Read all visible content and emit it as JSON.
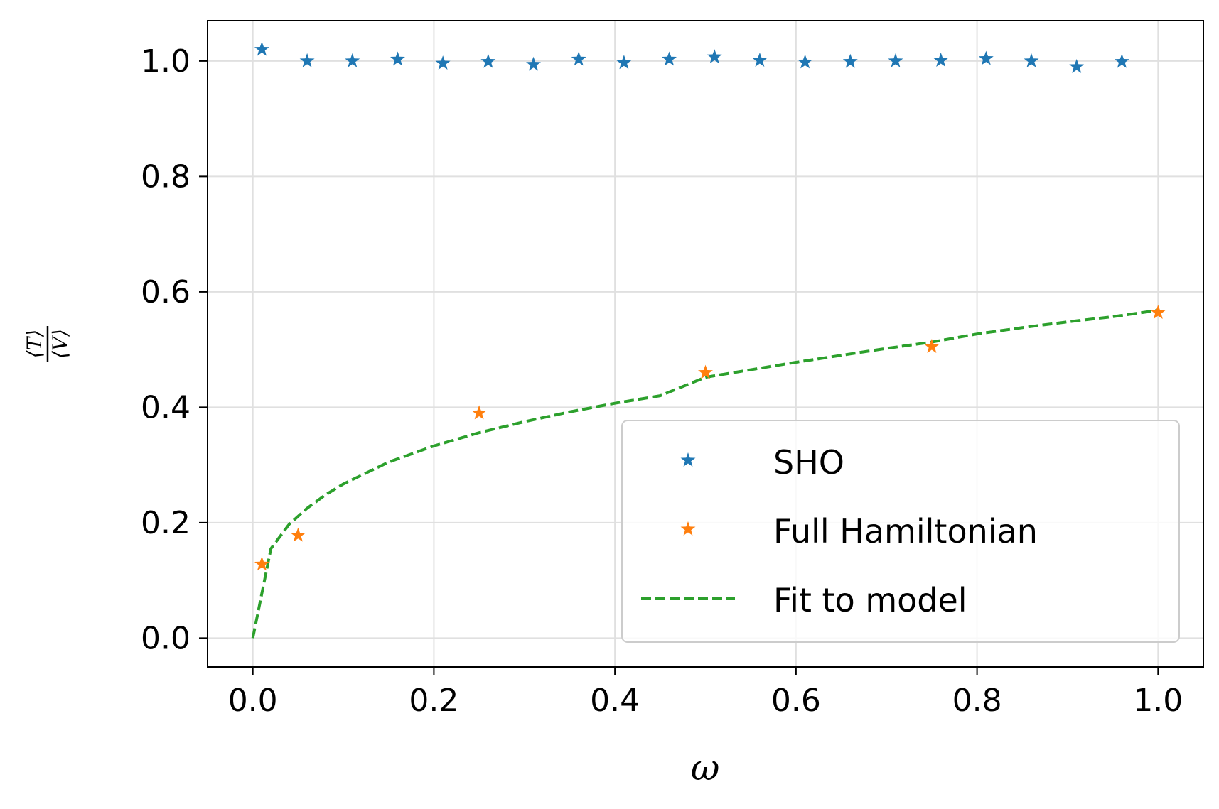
{
  "chart_data": {
    "type": "scatter",
    "xlabel": "ω",
    "ylabel": {
      "numerator": "⟨T⟩",
      "denominator": "⟨V⟩"
    },
    "xlim": [
      -0.05,
      1.05
    ],
    "ylim": [
      -0.05,
      1.07
    ],
    "xticks": [
      0.0,
      0.2,
      0.4,
      0.6,
      0.8,
      1.0
    ],
    "xtick_labels": [
      "0.0",
      "0.2",
      "0.4",
      "0.6",
      "0.8",
      "1.0"
    ],
    "yticks": [
      0.0,
      0.2,
      0.4,
      0.6,
      0.8,
      1.0
    ],
    "ytick_labels": [
      "0.0",
      "0.2",
      "0.4",
      "0.6",
      "0.8",
      "1.0"
    ],
    "grid": true,
    "legend_position": "lower-right",
    "series": [
      {
        "name": "SHO",
        "kind": "markers",
        "marker": "star",
        "color": "#1f77b4",
        "x": [
          0.01,
          0.06,
          0.11,
          0.16,
          0.21,
          0.26,
          0.31,
          0.36,
          0.41,
          0.46,
          0.51,
          0.56,
          0.61,
          0.66,
          0.71,
          0.76,
          0.81,
          0.86,
          0.91,
          0.96
        ],
        "y": [
          1.02,
          1.0,
          1.0,
          1.003,
          0.996,
          0.999,
          0.994,
          1.003,
          0.997,
          1.003,
          1.007,
          1.001,
          0.998,
          0.999,
          1.0,
          1.001,
          1.004,
          1.0,
          0.99,
          0.999
        ]
      },
      {
        "name": "Full Hamiltonian",
        "kind": "markers",
        "marker": "star",
        "color": "#ff7f0e",
        "x": [
          0.01,
          0.05,
          0.25,
          0.5,
          0.75,
          1.0
        ],
        "y": [
          0.128,
          0.178,
          0.39,
          0.46,
          0.505,
          0.564
        ]
      },
      {
        "name": "Fit to model",
        "kind": "line",
        "style": "dashed",
        "color": "#2ca02c",
        "x": [
          0.0,
          0.02,
          0.04,
          0.06,
          0.08,
          0.1,
          0.15,
          0.2,
          0.25,
          0.3,
          0.35,
          0.4,
          0.45,
          0.5,
          0.55,
          0.6,
          0.65,
          0.7,
          0.75,
          0.8,
          0.85,
          0.9,
          0.95,
          1.0
        ],
        "y": [
          0.0,
          0.155,
          0.197,
          0.225,
          0.248,
          0.267,
          0.305,
          0.333,
          0.356,
          0.375,
          0.392,
          0.407,
          0.42,
          0.452,
          0.465,
          0.478,
          0.49,
          0.502,
          0.513,
          0.527,
          0.538,
          0.548,
          0.557,
          0.568
        ]
      }
    ]
  }
}
